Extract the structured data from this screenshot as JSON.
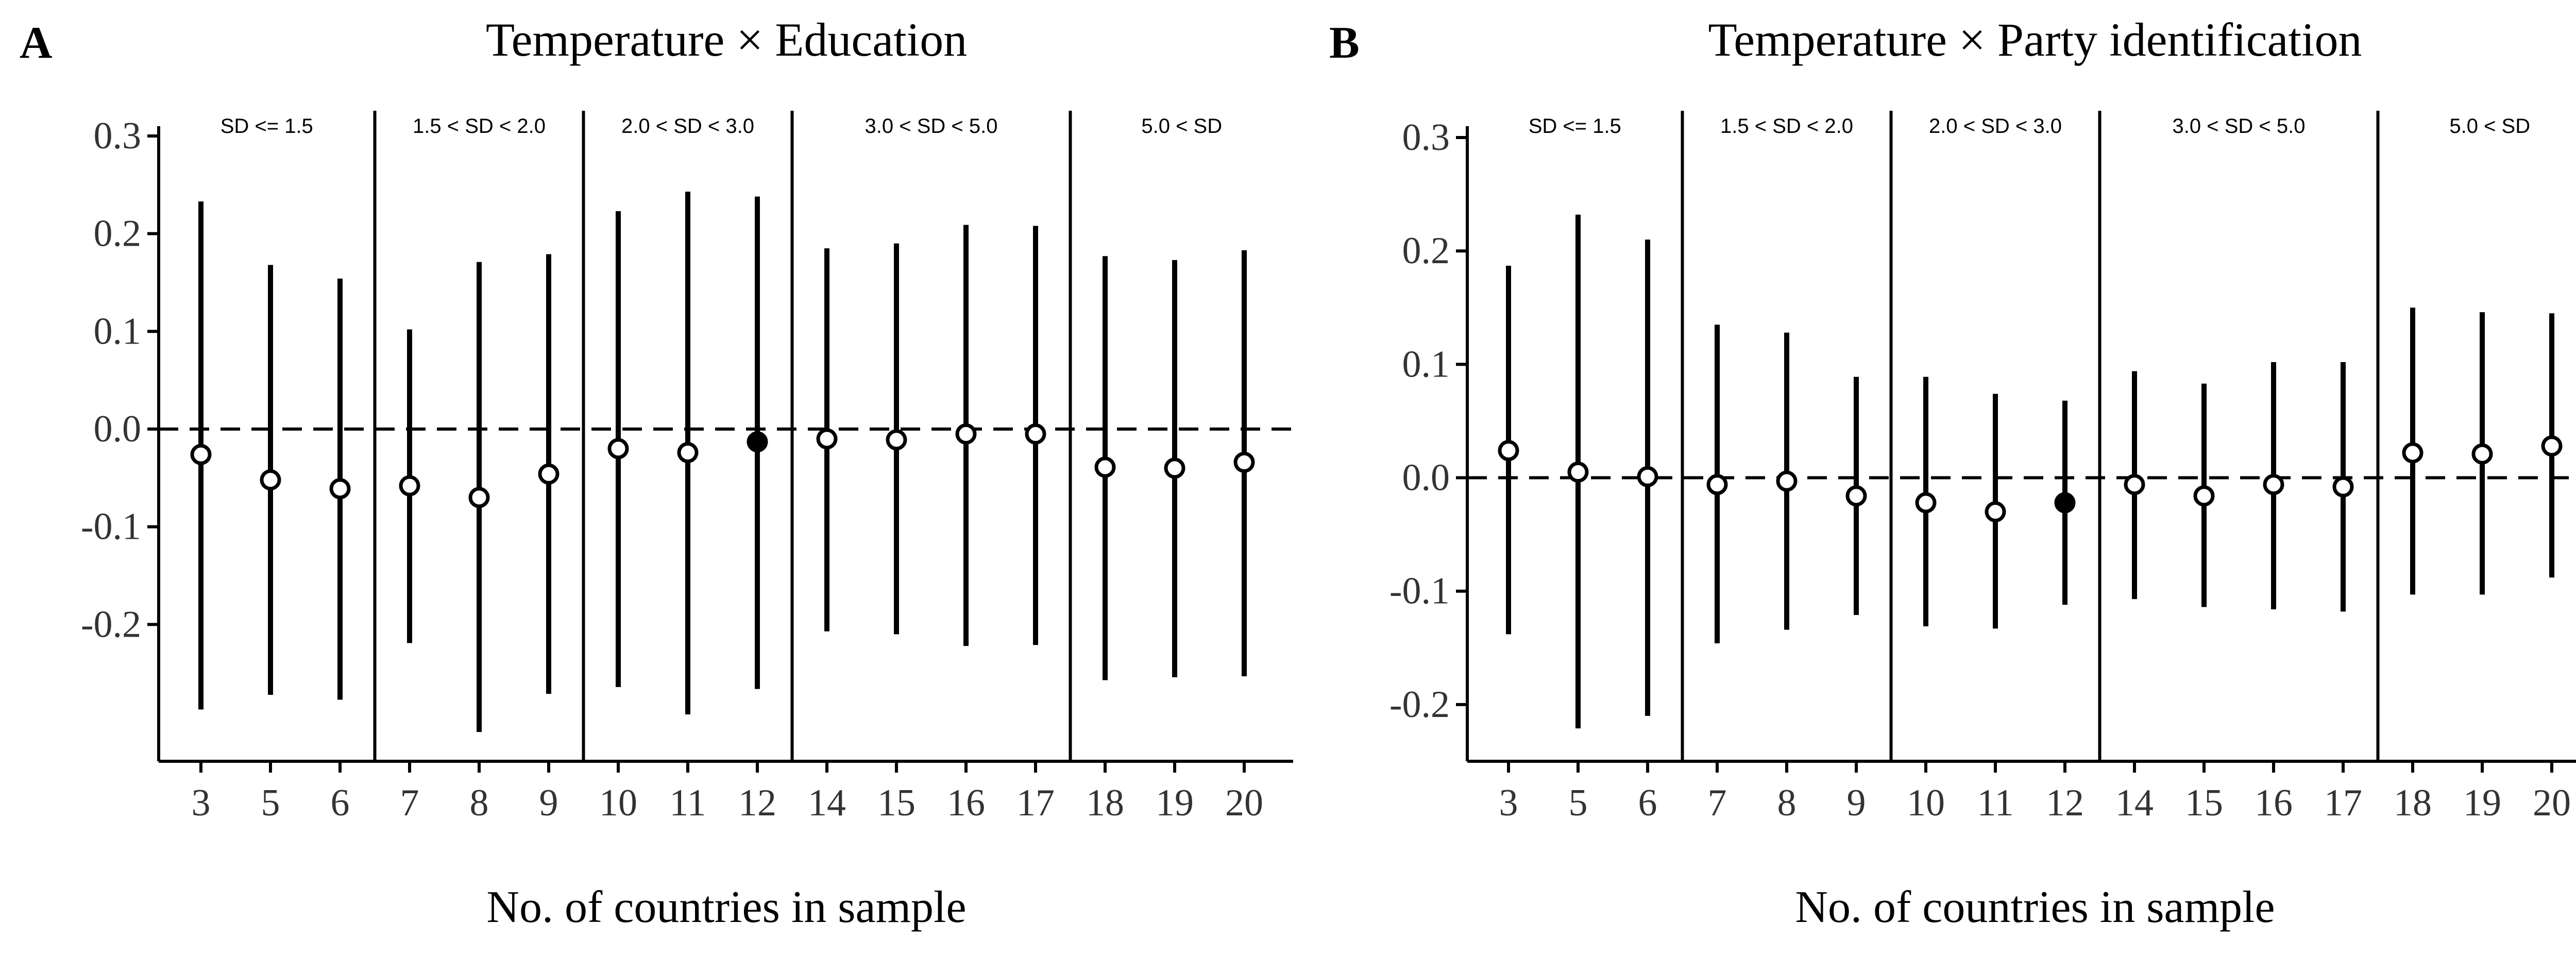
{
  "chart_data": [
    {
      "panel": "A",
      "type": "scatter",
      "title": "Temperature × Education",
      "xlabel": "No. of countries in sample",
      "ylabel": "",
      "ylim": [
        -0.34,
        0.31
      ],
      "y_ticks": [
        0.3,
        0.2,
        0.1,
        0.0,
        -0.1,
        -0.2
      ],
      "y_tick_labels": [
        "0.3",
        "0.2",
        "0.1",
        "0.0",
        "-0.1",
        "-0.2"
      ],
      "reference_line": 0,
      "groups": [
        {
          "label": "SD <= 1.5",
          "categories": [
            "3",
            "5",
            "6"
          ]
        },
        {
          "label": "1.5 < SD < 2.0",
          "categories": [
            "7",
            "8",
            "9"
          ]
        },
        {
          "label": "2.0 < SD < 3.0",
          "categories": [
            "10",
            "11",
            "12"
          ]
        },
        {
          "label": "3.0 < SD < 5.0",
          "categories": [
            "14",
            "15",
            "16",
            "17"
          ]
        },
        {
          "label": "5.0 < SD",
          "categories": [
            "18",
            "19",
            "20"
          ]
        }
      ],
      "categories": [
        "3",
        "5",
        "6",
        "7",
        "8",
        "9",
        "10",
        "11",
        "12",
        "14",
        "15",
        "16",
        "17",
        "18",
        "19",
        "20"
      ],
      "estimate": [
        -0.026,
        -0.052,
        -0.061,
        -0.058,
        -0.07,
        -0.046,
        -0.02,
        -0.024,
        -0.013,
        -0.01,
        -0.011,
        -0.005,
        -0.005,
        -0.039,
        -0.04,
        -0.034
      ],
      "lower": [
        -0.287,
        -0.272,
        -0.277,
        -0.219,
        -0.31,
        -0.271,
        -0.264,
        -0.292,
        -0.266,
        -0.207,
        -0.21,
        -0.222,
        -0.221,
        -0.257,
        -0.254,
        -0.253
      ],
      "upper": [
        0.233,
        0.168,
        0.154,
        0.102,
        0.171,
        0.179,
        0.223,
        0.243,
        0.238,
        0.185,
        0.19,
        0.209,
        0.208,
        0.177,
        0.173,
        0.183
      ],
      "filled_category": "12",
      "colors": {
        "open": "#ffffff",
        "filled": "#000000",
        "line": "#000000"
      }
    },
    {
      "panel": "B",
      "type": "scatter",
      "title": "Temperature × Party identification",
      "xlabel": "No. of countries in sample",
      "ylabel": "",
      "ylim": [
        -0.25,
        0.31
      ],
      "y_ticks": [
        0.3,
        0.2,
        0.1,
        0.0,
        -0.1,
        -0.2
      ],
      "y_tick_labels": [
        "0.3",
        "0.2",
        "0.1",
        "0.0",
        "-0.1",
        "-0.2"
      ],
      "reference_line": 0,
      "groups": [
        {
          "label": "SD <= 1.5",
          "categories": [
            "3",
            "5",
            "6"
          ]
        },
        {
          "label": "1.5 < SD < 2.0",
          "categories": [
            "7",
            "8",
            "9"
          ]
        },
        {
          "label": "2.0 < SD < 3.0",
          "categories": [
            "10",
            "11",
            "12"
          ]
        },
        {
          "label": "3.0 < SD < 5.0",
          "categories": [
            "14",
            "15",
            "16",
            "17"
          ]
        },
        {
          "label": "5.0 < SD",
          "categories": [
            "18",
            "19",
            "20"
          ]
        }
      ],
      "categories": [
        "3",
        "5",
        "6",
        "7",
        "8",
        "9",
        "10",
        "11",
        "12",
        "14",
        "15",
        "16",
        "17",
        "18",
        "19",
        "20"
      ],
      "estimate": [
        0.024,
        0.005,
        0.001,
        -0.006,
        -0.003,
        -0.016,
        -0.022,
        -0.03,
        -0.022,
        -0.006,
        -0.016,
        -0.006,
        -0.008,
        0.022,
        0.021,
        0.028
      ],
      "lower": [
        -0.138,
        -0.221,
        -0.21,
        -0.146,
        -0.134,
        -0.121,
        -0.131,
        -0.133,
        -0.112,
        -0.107,
        -0.114,
        -0.116,
        -0.118,
        -0.103,
        -0.103,
        -0.088
      ],
      "upper": [
        0.187,
        0.232,
        0.21,
        0.135,
        0.128,
        0.089,
        0.089,
        0.074,
        0.068,
        0.094,
        0.083,
        0.102,
        0.102,
        0.15,
        0.146,
        0.145
      ],
      "filled_category": "12",
      "colors": {
        "open": "#ffffff",
        "filled": "#000000",
        "line": "#000000"
      }
    }
  ]
}
